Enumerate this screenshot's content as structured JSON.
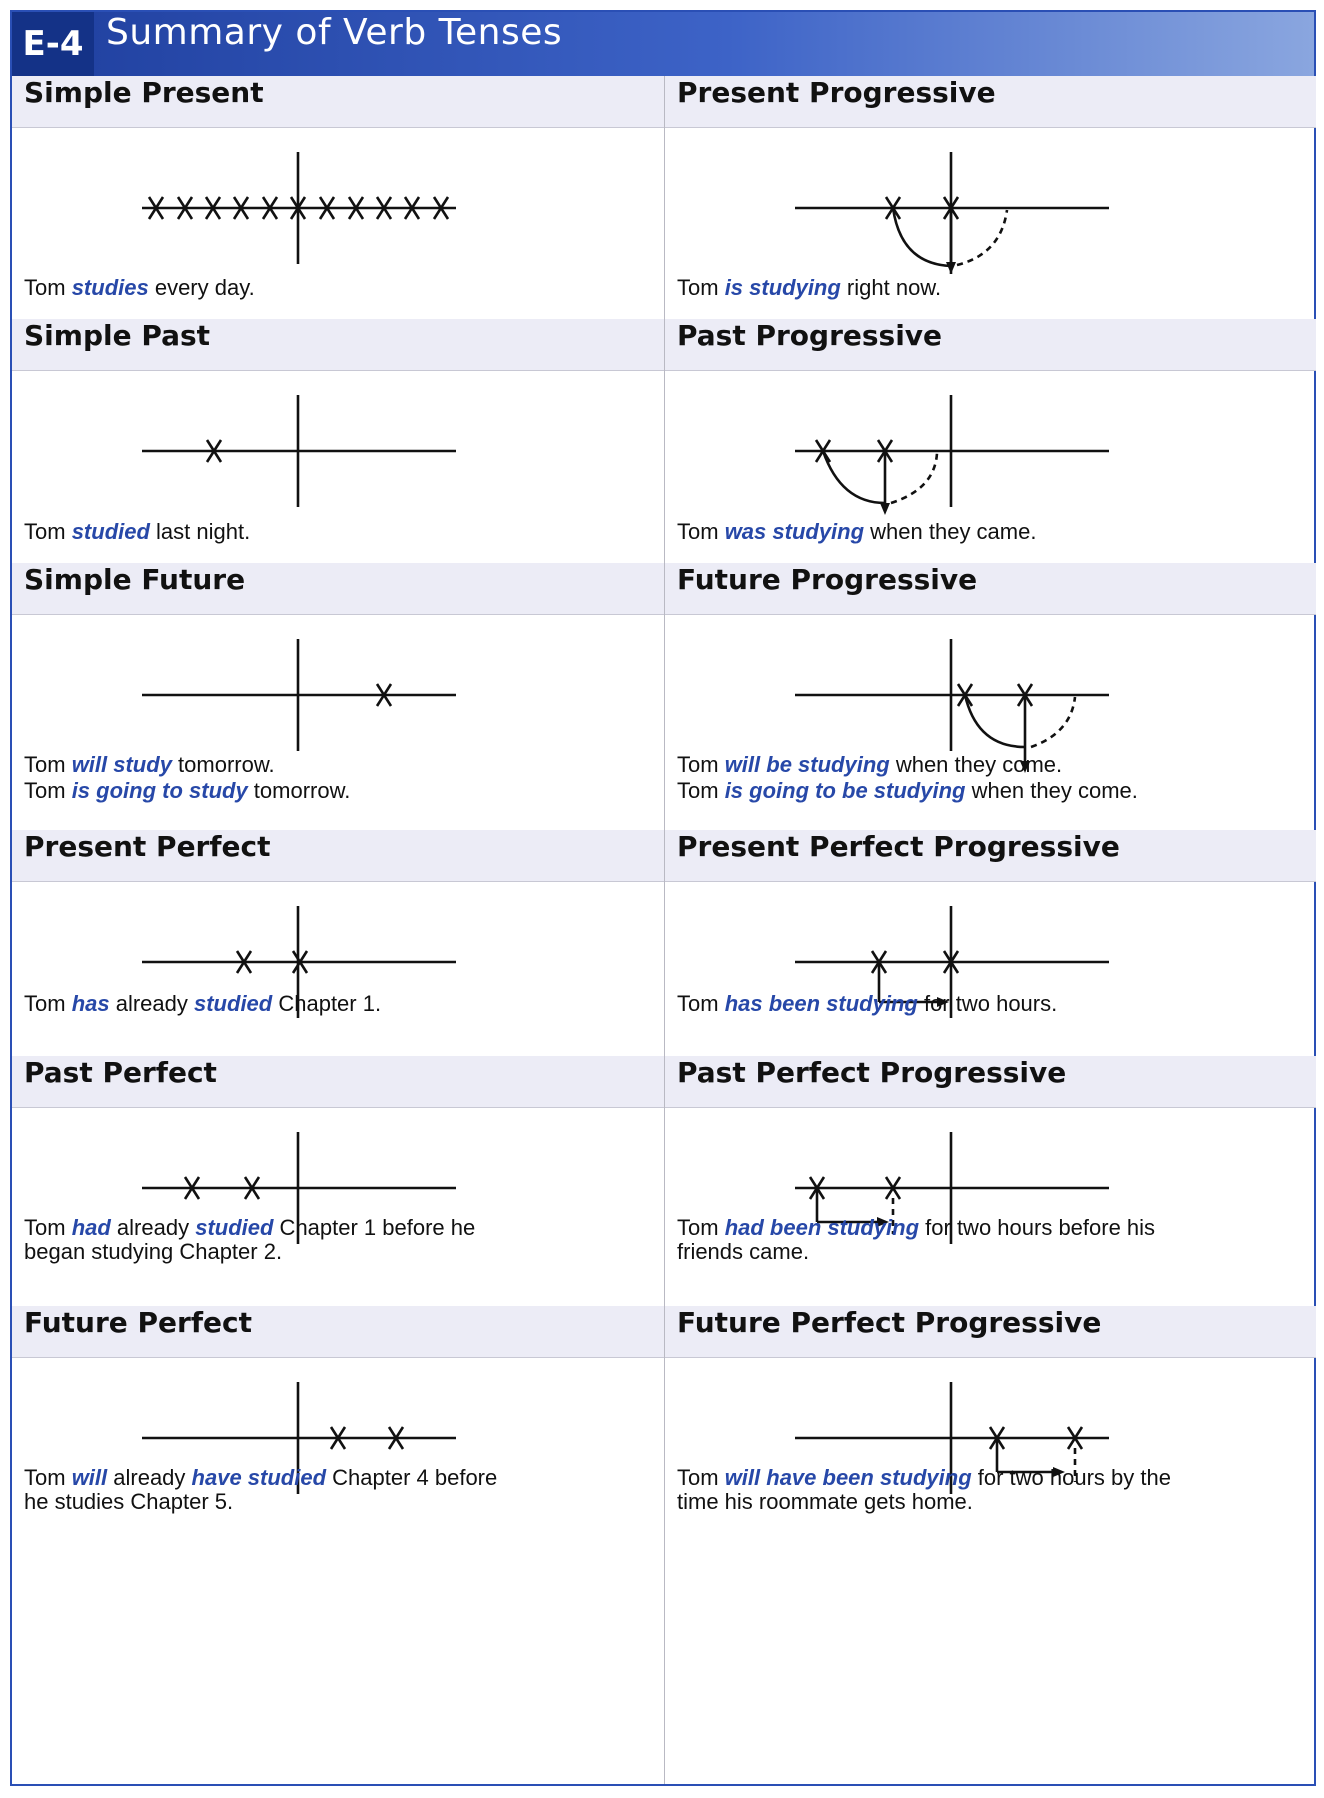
{
  "section": {
    "code": "E-4",
    "title": "Summary of Verb Tenses"
  },
  "tenses": [
    {
      "name": "Simple Present",
      "lines": [
        [
          {
            "t": "Tom "
          },
          {
            "t": "studies",
            "hl": true
          },
          {
            "t": " every day."
          }
        ]
      ]
    },
    {
      "name": "Present Progressive",
      "lines": [
        [
          {
            "t": "Tom "
          },
          {
            "t": "is studying",
            "hl": true
          },
          {
            "t": " right now."
          }
        ]
      ]
    },
    {
      "name": "Simple Past",
      "lines": [
        [
          {
            "t": "Tom "
          },
          {
            "t": "studied",
            "hl": true
          },
          {
            "t": " last night."
          }
        ]
      ]
    },
    {
      "name": "Past Progressive",
      "lines": [
        [
          {
            "t": "Tom "
          },
          {
            "t": "was studying",
            "hl": true
          },
          {
            "t": " when they came."
          }
        ]
      ]
    },
    {
      "name": "Simple Future",
      "lines": [
        [
          {
            "t": "Tom "
          },
          {
            "t": "will study",
            "hl": true
          },
          {
            "t": " tomorrow."
          }
        ],
        [
          {
            "t": "Tom "
          },
          {
            "t": "is going to study",
            "hl": true
          },
          {
            "t": " tomorrow."
          }
        ]
      ]
    },
    {
      "name": "Future Progressive",
      "lines": [
        [
          {
            "t": "Tom "
          },
          {
            "t": "will be studying",
            "hl": true
          },
          {
            "t": " when they come."
          }
        ],
        [
          {
            "t": "Tom "
          },
          {
            "t": "is going to be studying",
            "hl": true
          },
          {
            "t": " when they come."
          }
        ]
      ]
    },
    {
      "name": "Present Perfect",
      "lines": [
        [
          {
            "t": "Tom "
          },
          {
            "t": "has",
            "hl": true
          },
          {
            "t": " already "
          },
          {
            "t": "studied",
            "hl": true
          },
          {
            "t": " Chapter 1."
          }
        ]
      ]
    },
    {
      "name": "Present Perfect Progressive",
      "lines": [
        [
          {
            "t": "Tom "
          },
          {
            "t": "has been studying",
            "hl": true
          },
          {
            "t": " for two hours."
          }
        ]
      ]
    },
    {
      "name": "Past Perfect",
      "lines": [
        [
          {
            "t": "Tom "
          },
          {
            "t": "had",
            "hl": true
          },
          {
            "t": " already "
          },
          {
            "t": "studied",
            "hl": true
          },
          {
            "t": " Chapter 1 before he"
          }
        ],
        [
          {
            "t": "began studying Chapter 2."
          }
        ]
      ]
    },
    {
      "name": "Past Perfect Progressive",
      "lines": [
        [
          {
            "t": "Tom "
          },
          {
            "t": "had been studying",
            "hl": true
          },
          {
            "t": " for two hours before his"
          }
        ],
        [
          {
            "t": "friends came."
          }
        ]
      ]
    },
    {
      "name": "Future Perfect",
      "lines": [
        [
          {
            "t": "Tom "
          },
          {
            "t": "will",
            "hl": true
          },
          {
            "t": " already "
          },
          {
            "t": "have studied",
            "hl": true
          },
          {
            "t": " Chapter 4 before"
          }
        ],
        [
          {
            "t": "he studies Chapter 5."
          }
        ]
      ]
    },
    {
      "name": "Future Perfect Progressive",
      "lines": [
        [
          {
            "t": "Tom "
          },
          {
            "t": "will have been studying",
            "hl": true
          },
          {
            "t": " for two hours by the"
          }
        ],
        [
          {
            "t": "time his roommate gets home."
          }
        ]
      ]
    }
  ],
  "colors": {
    "accent": "#2748a8",
    "banner": "#1f3f9e",
    "header_bg": "#ececf6"
  }
}
